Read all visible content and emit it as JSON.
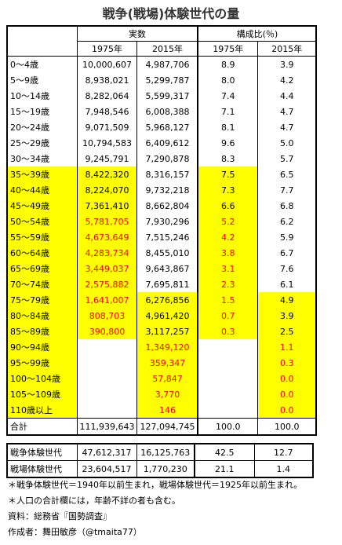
{
  "title": "戦争(戦場)体験世代の量",
  "table": {
    "header": {
      "group1": "実数",
      "group2": "構成比(％)",
      "years": [
        "1975年",
        "2015年",
        "1975年",
        "2015年"
      ]
    },
    "rows": [
      [
        "0～4歳",
        "10,000,607",
        "4,987,706",
        "8.9",
        "3.9"
      ],
      [
        "5～9歳",
        "8,938,021",
        "5,299,787",
        "8.0",
        "4.2"
      ],
      [
        "10～14歳",
        "8,282,064",
        "5,599,317",
        "7.4",
        "4.4"
      ],
      [
        "15～19歳",
        "7,948,546",
        "6,008,388",
        "7.1",
        "4.7"
      ],
      [
        "20～24歳",
        "9,071,509",
        "5,968,127",
        "8.1",
        "4.7"
      ],
      [
        "25～29歳",
        "10,794,583",
        "6,409,612",
        "9.6",
        "5.0"
      ],
      [
        "30～34歳",
        "9,245,791",
        "7,290,878",
        "8.3",
        "5.7"
      ],
      [
        "35～39歳",
        "8,422,320",
        "8,316,157",
        "7.5",
        "6.5"
      ],
      [
        "40～44歳",
        "8,224,070",
        "9,732,218",
        "7.3",
        "7.7"
      ],
      [
        "45～49歳",
        "7,361,410",
        "8,662,804",
        "6.6",
        "6.8"
      ],
      [
        "50～54歳",
        "5,781,705",
        "7,930,296",
        "5.2",
        "6.2"
      ],
      [
        "55～59歳",
        "4,673,649",
        "7,515,246",
        "4.2",
        "5.9"
      ],
      [
        "60～64歳",
        "4,283,734",
        "8,455,010",
        "3.8",
        "6.7"
      ],
      [
        "65～69歳",
        "3,449,037",
        "9,643,867",
        "3.1",
        "7.6"
      ],
      [
        "70～74歳",
        "2,575,882",
        "7,695,811",
        "2.3",
        "6.1"
      ],
      [
        "75～79歳",
        "1,641,007",
        "6,276,856",
        "1.5",
        "4.9"
      ],
      [
        "80～84歳",
        "808,703",
        "4,961,420",
        "0.7",
        "3.9"
      ],
      [
        "85～89歳",
        "390,800",
        "3,117,257",
        "0.3",
        "2.5"
      ],
      [
        "90～94歳",
        null,
        "1,349,120",
        null,
        "1.1"
      ],
      [
        "95～99歳",
        null,
        "359,347",
        null,
        "0.3"
      ],
      [
        "100～104歳",
        null,
        "57,847",
        null,
        "0.0"
      ],
      [
        "105～109歳",
        null,
        "3,770",
        null,
        "0.0"
      ],
      [
        "110歳以上",
        null,
        "146",
        null,
        "0.0"
      ]
    ],
    "total": [
      "合計",
      "111,939,643",
      "127,094,745",
      "100.0",
      "100.0"
    ],
    "generations": [
      [
        "戦争体験世代",
        "47,612,317",
        "16,125,763",
        "42.5",
        "12.7"
      ],
      [
        "戦場体験世代",
        "23,604,517",
        "1,770,230",
        "21.1",
        "1.4"
      ]
    ]
  },
  "notes": [
    "＊戦争体験世代＝1940年以前生まれ，戦場体験世代＝1925年以前生まれ。",
    "＊人口の合計欄には，年齢不詳の者も含む。",
    "資料：総務省『国勢調査』",
    "作成者：舞田敏彦（@tmaita77）"
  ]
}
